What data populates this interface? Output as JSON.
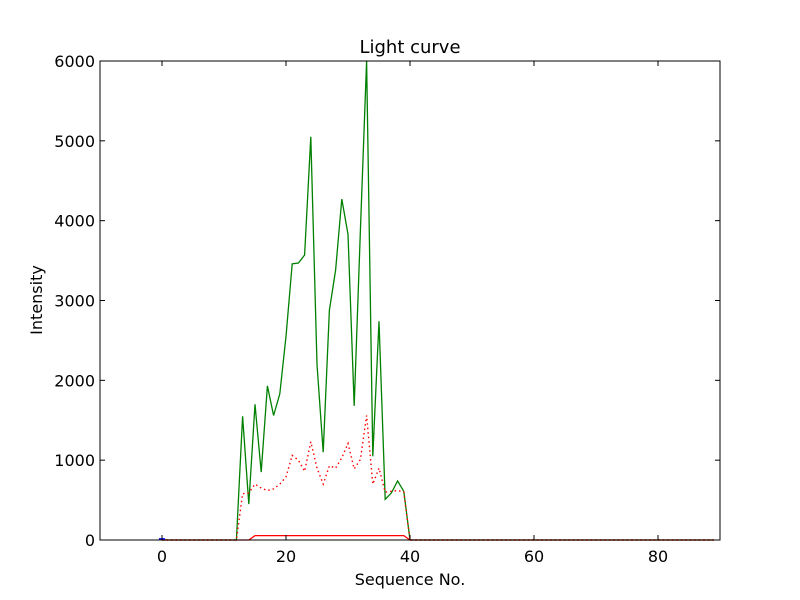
{
  "chart_data": {
    "type": "line",
    "title": "Light curve",
    "xlabel": "Sequence No.",
    "ylabel": "Intensity",
    "xlim": [
      -10,
      90
    ],
    "ylim": [
      0,
      6000
    ],
    "xticks": [
      0,
      20,
      40,
      60,
      80
    ],
    "yticks": [
      0,
      1000,
      2000,
      3000,
      4000,
      5000,
      6000
    ],
    "grid": false,
    "legend": "none",
    "series": [
      {
        "color": "#008000",
        "style": "solid",
        "points": [
          [
            0,
            0
          ],
          [
            12,
            0
          ],
          [
            13,
            1550
          ],
          [
            14,
            450
          ],
          [
            15,
            1700
          ],
          [
            16,
            850
          ],
          [
            17,
            1930
          ],
          [
            18,
            1560
          ],
          [
            19,
            1830
          ],
          [
            20,
            2550
          ],
          [
            21,
            3460
          ],
          [
            22,
            3470
          ],
          [
            23,
            3570
          ],
          [
            24,
            5050
          ],
          [
            25,
            2200
          ],
          [
            26,
            1100
          ],
          [
            27,
            2880
          ],
          [
            28,
            3380
          ],
          [
            29,
            4270
          ],
          [
            30,
            3830
          ],
          [
            31,
            1680
          ],
          [
            32,
            3880
          ],
          [
            33,
            6000
          ],
          [
            34,
            1050
          ],
          [
            35,
            2740
          ],
          [
            36,
            510
          ],
          [
            37,
            590
          ],
          [
            38,
            740
          ],
          [
            39,
            610
          ],
          [
            40,
            0
          ],
          [
            89,
            0
          ]
        ]
      },
      {
        "color": "#ff0000",
        "style": "dotted",
        "points": [
          [
            0,
            0
          ],
          [
            12,
            0
          ],
          [
            13,
            580
          ],
          [
            14,
            590
          ],
          [
            15,
            700
          ],
          [
            16,
            650
          ],
          [
            17,
            620
          ],
          [
            18,
            640
          ],
          [
            19,
            700
          ],
          [
            20,
            790
          ],
          [
            21,
            1060
          ],
          [
            22,
            1000
          ],
          [
            23,
            860
          ],
          [
            24,
            1230
          ],
          [
            25,
            900
          ],
          [
            26,
            700
          ],
          [
            27,
            930
          ],
          [
            28,
            900
          ],
          [
            29,
            1030
          ],
          [
            30,
            1210
          ],
          [
            31,
            890
          ],
          [
            32,
            1010
          ],
          [
            33,
            1560
          ],
          [
            34,
            700
          ],
          [
            35,
            900
          ],
          [
            36,
            600
          ],
          [
            37,
            610
          ],
          [
            38,
            620
          ],
          [
            39,
            600
          ],
          [
            40,
            0
          ],
          [
            89,
            0
          ]
        ]
      },
      {
        "color": "#ff0000",
        "style": "solid",
        "points": [
          [
            0,
            0
          ],
          [
            14,
            0
          ],
          [
            15,
            55
          ],
          [
            39,
            55
          ],
          [
            40,
            0
          ],
          [
            89,
            0
          ]
        ]
      },
      {
        "color": "#0000ff",
        "style": "solid",
        "points": [
          [
            -0.5,
            15
          ],
          [
            0,
            15
          ],
          [
            0.5,
            15
          ]
        ]
      }
    ]
  }
}
